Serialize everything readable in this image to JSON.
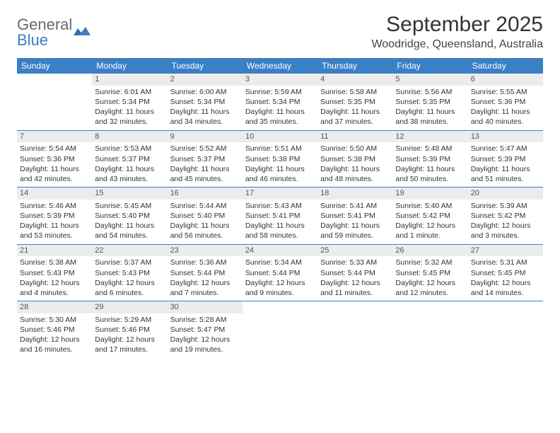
{
  "logo": {
    "word1": "General",
    "word2": "Blue"
  },
  "title": "September 2025",
  "location": "Woodridge, Queensland, Australia",
  "colors": {
    "header_bg": "#3b7fc4",
    "header_text": "#ffffff",
    "daynum_bg": "#ececec",
    "rule": "#3b7fc4",
    "text": "#333333",
    "logo_gray": "#6b6b6b",
    "logo_blue": "#3b7fc4",
    "page_bg": "#ffffff"
  },
  "typography": {
    "title_fontsize": 30,
    "location_fontsize": 16,
    "dayheader_fontsize": 12,
    "cell_fontsize": 10.5,
    "logo_fontsize": 22
  },
  "day_names": [
    "Sunday",
    "Monday",
    "Tuesday",
    "Wednesday",
    "Thursday",
    "Friday",
    "Saturday"
  ],
  "weeks": [
    [
      null,
      {
        "n": "1",
        "sr": "Sunrise: 6:01 AM",
        "ss": "Sunset: 5:34 PM",
        "dl": "Daylight: 11 hours and 32 minutes."
      },
      {
        "n": "2",
        "sr": "Sunrise: 6:00 AM",
        "ss": "Sunset: 5:34 PM",
        "dl": "Daylight: 11 hours and 34 minutes."
      },
      {
        "n": "3",
        "sr": "Sunrise: 5:59 AM",
        "ss": "Sunset: 5:34 PM",
        "dl": "Daylight: 11 hours and 35 minutes."
      },
      {
        "n": "4",
        "sr": "Sunrise: 5:58 AM",
        "ss": "Sunset: 5:35 PM",
        "dl": "Daylight: 11 hours and 37 minutes."
      },
      {
        "n": "5",
        "sr": "Sunrise: 5:56 AM",
        "ss": "Sunset: 5:35 PM",
        "dl": "Daylight: 11 hours and 38 minutes."
      },
      {
        "n": "6",
        "sr": "Sunrise: 5:55 AM",
        "ss": "Sunset: 5:36 PM",
        "dl": "Daylight: 11 hours and 40 minutes."
      }
    ],
    [
      {
        "n": "7",
        "sr": "Sunrise: 5:54 AM",
        "ss": "Sunset: 5:36 PM",
        "dl": "Daylight: 11 hours and 42 minutes."
      },
      {
        "n": "8",
        "sr": "Sunrise: 5:53 AM",
        "ss": "Sunset: 5:37 PM",
        "dl": "Daylight: 11 hours and 43 minutes."
      },
      {
        "n": "9",
        "sr": "Sunrise: 5:52 AM",
        "ss": "Sunset: 5:37 PM",
        "dl": "Daylight: 11 hours and 45 minutes."
      },
      {
        "n": "10",
        "sr": "Sunrise: 5:51 AM",
        "ss": "Sunset: 5:38 PM",
        "dl": "Daylight: 11 hours and 46 minutes."
      },
      {
        "n": "11",
        "sr": "Sunrise: 5:50 AM",
        "ss": "Sunset: 5:38 PM",
        "dl": "Daylight: 11 hours and 48 minutes."
      },
      {
        "n": "12",
        "sr": "Sunrise: 5:48 AM",
        "ss": "Sunset: 5:39 PM",
        "dl": "Daylight: 11 hours and 50 minutes."
      },
      {
        "n": "13",
        "sr": "Sunrise: 5:47 AM",
        "ss": "Sunset: 5:39 PM",
        "dl": "Daylight: 11 hours and 51 minutes."
      }
    ],
    [
      {
        "n": "14",
        "sr": "Sunrise: 5:46 AM",
        "ss": "Sunset: 5:39 PM",
        "dl": "Daylight: 11 hours and 53 minutes."
      },
      {
        "n": "15",
        "sr": "Sunrise: 5:45 AM",
        "ss": "Sunset: 5:40 PM",
        "dl": "Daylight: 11 hours and 54 minutes."
      },
      {
        "n": "16",
        "sr": "Sunrise: 5:44 AM",
        "ss": "Sunset: 5:40 PM",
        "dl": "Daylight: 11 hours and 56 minutes."
      },
      {
        "n": "17",
        "sr": "Sunrise: 5:43 AM",
        "ss": "Sunset: 5:41 PM",
        "dl": "Daylight: 11 hours and 58 minutes."
      },
      {
        "n": "18",
        "sr": "Sunrise: 5:41 AM",
        "ss": "Sunset: 5:41 PM",
        "dl": "Daylight: 11 hours and 59 minutes."
      },
      {
        "n": "19",
        "sr": "Sunrise: 5:40 AM",
        "ss": "Sunset: 5:42 PM",
        "dl": "Daylight: 12 hours and 1 minute."
      },
      {
        "n": "20",
        "sr": "Sunrise: 5:39 AM",
        "ss": "Sunset: 5:42 PM",
        "dl": "Daylight: 12 hours and 3 minutes."
      }
    ],
    [
      {
        "n": "21",
        "sr": "Sunrise: 5:38 AM",
        "ss": "Sunset: 5:43 PM",
        "dl": "Daylight: 12 hours and 4 minutes."
      },
      {
        "n": "22",
        "sr": "Sunrise: 5:37 AM",
        "ss": "Sunset: 5:43 PM",
        "dl": "Daylight: 12 hours and 6 minutes."
      },
      {
        "n": "23",
        "sr": "Sunrise: 5:36 AM",
        "ss": "Sunset: 5:44 PM",
        "dl": "Daylight: 12 hours and 7 minutes."
      },
      {
        "n": "24",
        "sr": "Sunrise: 5:34 AM",
        "ss": "Sunset: 5:44 PM",
        "dl": "Daylight: 12 hours and 9 minutes."
      },
      {
        "n": "25",
        "sr": "Sunrise: 5:33 AM",
        "ss": "Sunset: 5:44 PM",
        "dl": "Daylight: 12 hours and 11 minutes."
      },
      {
        "n": "26",
        "sr": "Sunrise: 5:32 AM",
        "ss": "Sunset: 5:45 PM",
        "dl": "Daylight: 12 hours and 12 minutes."
      },
      {
        "n": "27",
        "sr": "Sunrise: 5:31 AM",
        "ss": "Sunset: 5:45 PM",
        "dl": "Daylight: 12 hours and 14 minutes."
      }
    ],
    [
      {
        "n": "28",
        "sr": "Sunrise: 5:30 AM",
        "ss": "Sunset: 5:46 PM",
        "dl": "Daylight: 12 hours and 16 minutes."
      },
      {
        "n": "29",
        "sr": "Sunrise: 5:29 AM",
        "ss": "Sunset: 5:46 PM",
        "dl": "Daylight: 12 hours and 17 minutes."
      },
      {
        "n": "30",
        "sr": "Sunrise: 5:28 AM",
        "ss": "Sunset: 5:47 PM",
        "dl": "Daylight: 12 hours and 19 minutes."
      },
      null,
      null,
      null,
      null
    ]
  ]
}
